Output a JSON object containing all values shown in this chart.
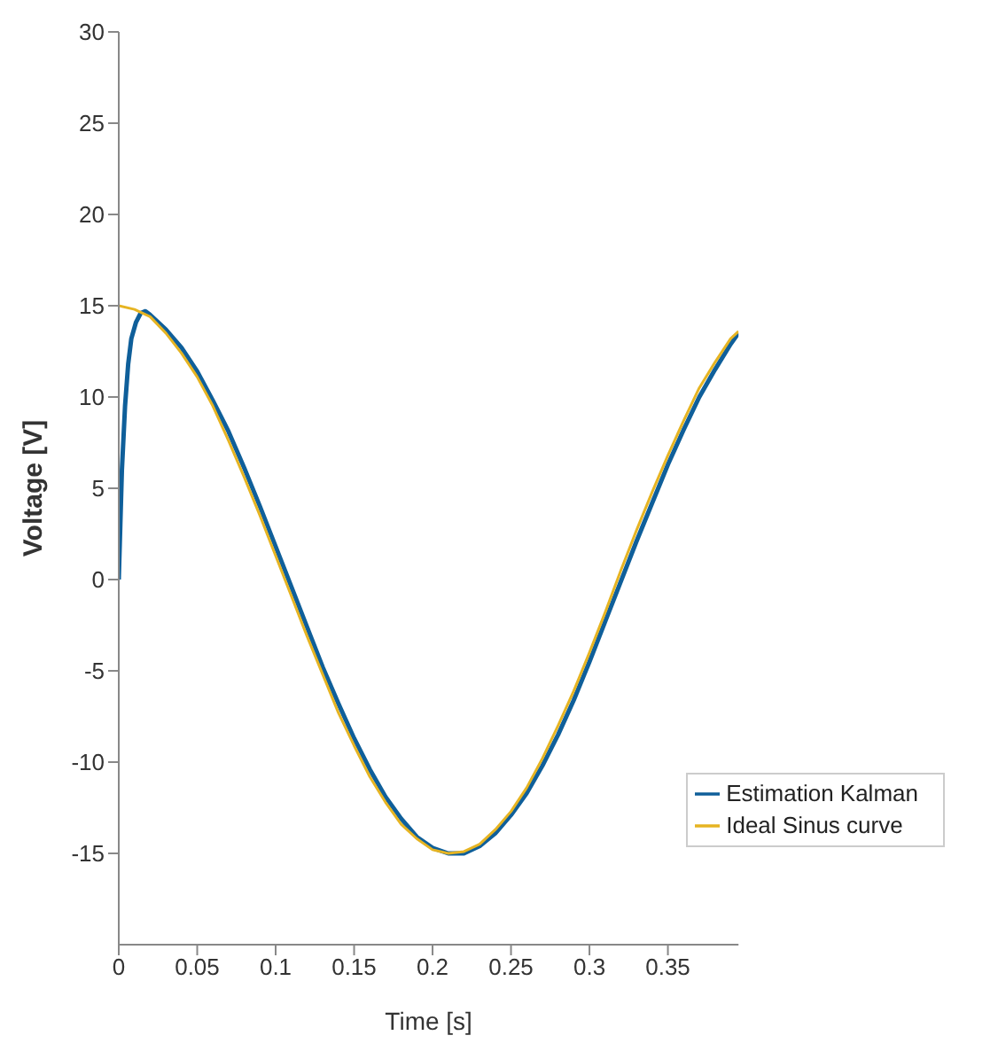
{
  "chart_data": {
    "type": "line",
    "xlabel": "Time [s]",
    "ylabel": "Voltage [V]",
    "xlim": [
      0,
      0.395
    ],
    "ylim": [
      -20,
      30
    ],
    "xticks": [
      0,
      0.05,
      0.1,
      0.15,
      0.2,
      0.25,
      0.3,
      0.35
    ],
    "yticks": [
      -15,
      -10,
      -5,
      0,
      5,
      10,
      15,
      20,
      25,
      30
    ],
    "grid": false,
    "legend": "bottom right",
    "marker": "none",
    "line_style": "solid",
    "series": [
      {
        "name": "Estimation Kalman",
        "color": "#0f5f9a",
        "x": [
          0,
          0.001,
          0.002,
          0.004,
          0.006,
          0.008,
          0.011,
          0.014,
          0.017,
          0.02,
          0.03,
          0.04,
          0.05,
          0.06,
          0.07,
          0.08,
          0.09,
          0.1,
          0.11,
          0.12,
          0.13,
          0.14,
          0.15,
          0.16,
          0.17,
          0.18,
          0.19,
          0.2,
          0.21,
          0.22,
          0.23,
          0.24,
          0.25,
          0.26,
          0.27,
          0.28,
          0.29,
          0.3,
          0.31,
          0.32,
          0.33,
          0.34,
          0.35,
          0.36,
          0.37,
          0.38,
          0.39,
          0.395
        ],
        "values": [
          0,
          3,
          6,
          9.5,
          11.8,
          13.2,
          14.1,
          14.6,
          14.7,
          14.5,
          13.7,
          12.7,
          11.4,
          9.8,
          8.1,
          6.1,
          4,
          1.8,
          -0.4,
          -2.6,
          -4.8,
          -6.8,
          -8.7,
          -10.4,
          -11.9,
          -13.1,
          -14.1,
          -14.7,
          -15,
          -15,
          -14.6,
          -13.9,
          -12.9,
          -11.7,
          -10.2,
          -8.5,
          -6.6,
          -4.5,
          -2.3,
          -0.1,
          2.1,
          4.2,
          6.3,
          8.2,
          10,
          11.5,
          12.9,
          13.5
        ]
      },
      {
        "name": "Ideal Sinus curve",
        "color": "#e6b422",
        "x": [
          0,
          0.01,
          0.02,
          0.03,
          0.04,
          0.05,
          0.06,
          0.07,
          0.08,
          0.09,
          0.1,
          0.11,
          0.12,
          0.13,
          0.14,
          0.15,
          0.16,
          0.17,
          0.18,
          0.19,
          0.2,
          0.21,
          0.22,
          0.23,
          0.24,
          0.25,
          0.26,
          0.27,
          0.28,
          0.29,
          0.3,
          0.31,
          0.32,
          0.33,
          0.34,
          0.35,
          0.36,
          0.37,
          0.38,
          0.39,
          0.395
        ],
        "values": [
          15,
          14.8,
          14.4,
          13.5,
          12.4,
          11.1,
          9.5,
          7.6,
          5.6,
          3.5,
          1.3,
          -0.9,
          -3.1,
          -5.2,
          -7.3,
          -9.1,
          -10.8,
          -12.2,
          -13.4,
          -14.2,
          -14.8,
          -15,
          -14.9,
          -14.5,
          -13.7,
          -12.7,
          -11.4,
          -9.8,
          -8,
          -6.1,
          -4,
          -1.8,
          0.5,
          2.7,
          4.8,
          6.8,
          8.7,
          10.5,
          11.9,
          13.2,
          13.6
        ]
      }
    ]
  }
}
